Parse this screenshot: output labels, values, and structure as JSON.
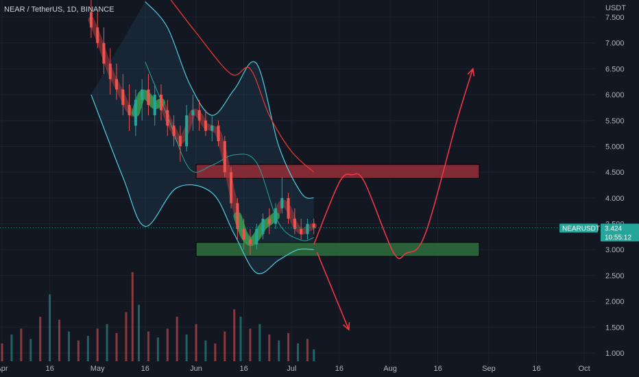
{
  "header": {
    "title": "NEAR / TetherUS, 1D, BINANCE"
  },
  "price_axis": {
    "currency": "USDT",
    "ticks": [
      "7.500",
      "7.000",
      "6.500",
      "6.000",
      "5.500",
      "5.000",
      "4.500",
      "4.000",
      "3.500",
      "3.000",
      "2.500",
      "2.000",
      "1.500",
      "1.000"
    ]
  },
  "time_axis": {
    "ticks": [
      "Apr",
      "16",
      "May",
      "16",
      "Jun",
      "16",
      "Jul",
      "16",
      "Aug",
      "16",
      "Sep",
      "16",
      "Oct"
    ]
  },
  "last_price": {
    "symbol": "NEARUSDT",
    "price": "3.424",
    "countdown": "10:55:12",
    "value": 3.424
  },
  "colors": {
    "background": "#131722",
    "up": "#26a69a",
    "down": "#ef5350",
    "band": "#4dd0e1",
    "ma_long": "#e53935",
    "projection": "#f23645",
    "resistance_fill": "#8e2b37",
    "support_fill": "#2d6a3c",
    "tag": "#26a69a"
  },
  "chart_data": {
    "type": "candlestick",
    "symbol": "NEAR / TetherUS",
    "interval": "1D",
    "exchange": "BINANCE",
    "y_unit": "USDT",
    "ylim": [
      0.9,
      7.8
    ],
    "x_range": [
      "2022-04-01",
      "2022-10-06"
    ],
    "candles": [
      {
        "date": "2022-04-29",
        "open": 7.6,
        "high": 8.0,
        "low": 7.1,
        "close": 7.3
      },
      {
        "date": "2022-05-01",
        "open": 7.3,
        "high": 7.6,
        "low": 6.9,
        "close": 7.0
      },
      {
        "date": "2022-05-03",
        "open": 7.0,
        "high": 7.3,
        "low": 6.4,
        "close": 6.6
      },
      {
        "date": "2022-05-05",
        "open": 6.6,
        "high": 6.9,
        "low": 6.0,
        "close": 6.3
      },
      {
        "date": "2022-05-07",
        "open": 6.3,
        "high": 6.6,
        "low": 5.9,
        "close": 6.1
      },
      {
        "date": "2022-05-09",
        "open": 6.1,
        "high": 6.4,
        "low": 5.6,
        "close": 5.8
      },
      {
        "date": "2022-05-11",
        "open": 5.8,
        "high": 6.2,
        "low": 5.3,
        "close": 5.6
      },
      {
        "date": "2022-05-13",
        "open": 5.4,
        "high": 6.1,
        "low": 5.2,
        "close": 5.9
      },
      {
        "date": "2022-05-15",
        "open": 5.9,
        "high": 6.3,
        "low": 5.5,
        "close": 6.1
      },
      {
        "date": "2022-05-17",
        "open": 6.1,
        "high": 6.4,
        "low": 5.6,
        "close": 5.8
      },
      {
        "date": "2022-05-19",
        "open": 5.6,
        "high": 6.2,
        "low": 5.4,
        "close": 6.0
      },
      {
        "date": "2022-05-21",
        "open": 6.0,
        "high": 6.2,
        "low": 5.5,
        "close": 5.7
      },
      {
        "date": "2022-05-23",
        "open": 5.7,
        "high": 5.9,
        "low": 5.2,
        "close": 5.4
      },
      {
        "date": "2022-05-25",
        "open": 5.4,
        "high": 5.6,
        "low": 5.0,
        "close": 5.2
      },
      {
        "date": "2022-05-27",
        "open": 5.2,
        "high": 5.4,
        "low": 4.7,
        "close": 5.0
      },
      {
        "date": "2022-05-29",
        "open": 5.0,
        "high": 5.8,
        "low": 4.9,
        "close": 5.6
      },
      {
        "date": "2022-05-31",
        "open": 5.6,
        "high": 6.0,
        "low": 5.3,
        "close": 5.7
      },
      {
        "date": "2022-06-02",
        "open": 5.7,
        "high": 5.9,
        "low": 5.3,
        "close": 5.5
      },
      {
        "date": "2022-06-04",
        "open": 5.5,
        "high": 5.7,
        "low": 5.2,
        "close": 5.3
      },
      {
        "date": "2022-06-06",
        "open": 5.3,
        "high": 5.6,
        "low": 5.1,
        "close": 5.4
      },
      {
        "date": "2022-06-08",
        "open": 5.4,
        "high": 5.5,
        "low": 5.0,
        "close": 5.1
      },
      {
        "date": "2022-06-10",
        "open": 5.1,
        "high": 5.2,
        "low": 4.4,
        "close": 4.5
      },
      {
        "date": "2022-06-12",
        "open": 4.5,
        "high": 4.6,
        "low": 3.8,
        "close": 3.9
      },
      {
        "date": "2022-06-14",
        "open": 3.9,
        "high": 4.0,
        "low": 3.2,
        "close": 3.4
      },
      {
        "date": "2022-06-16",
        "open": 3.4,
        "high": 3.6,
        "low": 3.0,
        "close": 3.2
      },
      {
        "date": "2022-06-18",
        "open": 3.2,
        "high": 3.4,
        "low": 2.9,
        "close": 3.1
      },
      {
        "date": "2022-06-20",
        "open": 3.1,
        "high": 3.5,
        "low": 3.0,
        "close": 3.4
      },
      {
        "date": "2022-06-22",
        "open": 3.3,
        "high": 3.7,
        "low": 3.2,
        "close": 3.6
      },
      {
        "date": "2022-06-24",
        "open": 3.6,
        "high": 3.8,
        "low": 3.3,
        "close": 3.5
      },
      {
        "date": "2022-06-26",
        "open": 3.5,
        "high": 3.9,
        "low": 3.4,
        "close": 3.8
      },
      {
        "date": "2022-06-28",
        "open": 3.8,
        "high": 4.4,
        "low": 3.7,
        "close": 4.0
      },
      {
        "date": "2022-06-30",
        "open": 4.0,
        "high": 4.1,
        "low": 3.5,
        "close": 3.6
      },
      {
        "date": "2022-07-02",
        "open": 3.6,
        "high": 3.8,
        "low": 3.3,
        "close": 3.4
      },
      {
        "date": "2022-07-04",
        "open": 3.4,
        "high": 3.6,
        "low": 3.2,
        "close": 3.3
      },
      {
        "date": "2022-07-06",
        "open": 3.3,
        "high": 3.6,
        "low": 3.2,
        "close": 3.5
      },
      {
        "date": "2022-07-08",
        "open": 3.5,
        "high": 3.6,
        "low": 3.3,
        "close": 3.424
      }
    ],
    "volume": [
      {
        "date": "2022-04-01",
        "value": 12,
        "dir": "down"
      },
      {
        "date": "2022-04-04",
        "value": 18,
        "dir": "up"
      },
      {
        "date": "2022-04-07",
        "value": 22,
        "dir": "down"
      },
      {
        "date": "2022-04-10",
        "value": 15,
        "dir": "up"
      },
      {
        "date": "2022-04-13",
        "value": 30,
        "dir": "down"
      },
      {
        "date": "2022-04-16",
        "value": 45,
        "dir": "up"
      },
      {
        "date": "2022-04-19",
        "value": 28,
        "dir": "down"
      },
      {
        "date": "2022-04-22",
        "value": 20,
        "dir": "up"
      },
      {
        "date": "2022-04-25",
        "value": 14,
        "dir": "down"
      },
      {
        "date": "2022-04-28",
        "value": 17,
        "dir": "up"
      },
      {
        "date": "2022-05-01",
        "value": 22,
        "dir": "down"
      },
      {
        "date": "2022-05-04",
        "value": 25,
        "dir": "up"
      },
      {
        "date": "2022-05-07",
        "value": 19,
        "dir": "down"
      },
      {
        "date": "2022-05-10",
        "value": 33,
        "dir": "down"
      },
      {
        "date": "2022-05-12",
        "value": 60,
        "dir": "down"
      },
      {
        "date": "2022-05-14",
        "value": 38,
        "dir": "up"
      },
      {
        "date": "2022-05-17",
        "value": 20,
        "dir": "down"
      },
      {
        "date": "2022-05-20",
        "value": 16,
        "dir": "up"
      },
      {
        "date": "2022-05-23",
        "value": 22,
        "dir": "down"
      },
      {
        "date": "2022-05-26",
        "value": 30,
        "dir": "down"
      },
      {
        "date": "2022-05-29",
        "value": 18,
        "dir": "up"
      },
      {
        "date": "2022-06-01",
        "value": 25,
        "dir": "down"
      },
      {
        "date": "2022-06-04",
        "value": 14,
        "dir": "up"
      },
      {
        "date": "2022-06-07",
        "value": 12,
        "dir": "down"
      },
      {
        "date": "2022-06-10",
        "value": 20,
        "dir": "down"
      },
      {
        "date": "2022-06-13",
        "value": 35,
        "dir": "down"
      },
      {
        "date": "2022-06-15",
        "value": 30,
        "dir": "up"
      },
      {
        "date": "2022-06-18",
        "value": 22,
        "dir": "down"
      },
      {
        "date": "2022-06-21",
        "value": 25,
        "dir": "up"
      },
      {
        "date": "2022-06-24",
        "value": 18,
        "dir": "down"
      },
      {
        "date": "2022-06-27",
        "value": 14,
        "dir": "up"
      },
      {
        "date": "2022-06-30",
        "value": 19,
        "dir": "down"
      },
      {
        "date": "2022-07-03",
        "value": 12,
        "dir": "up"
      },
      {
        "date": "2022-07-06",
        "value": 15,
        "dir": "down"
      },
      {
        "date": "2022-07-08",
        "value": 8,
        "dir": "up"
      }
    ],
    "zones": [
      {
        "kind": "resistance",
        "from": "2022-06-01",
        "to": "2022-08-29",
        "low": 4.38,
        "high": 4.65
      },
      {
        "kind": "support",
        "from": "2022-06-01",
        "to": "2022-08-29",
        "low": 2.87,
        "high": 3.14
      }
    ],
    "upper_band": [
      {
        "date": "2022-05-16",
        "value": 7.8
      },
      {
        "date": "2022-05-23",
        "value": 7.3
      },
      {
        "date": "2022-05-30",
        "value": 6.2
      },
      {
        "date": "2022-06-06",
        "value": 5.6
      },
      {
        "date": "2022-06-13",
        "value": 6.1
      },
      {
        "date": "2022-06-20",
        "value": 6.6
      },
      {
        "date": "2022-06-27",
        "value": 5.0
      },
      {
        "date": "2022-07-04",
        "value": 4.1
      },
      {
        "date": "2022-07-08",
        "value": 4.0
      }
    ],
    "lower_band": [
      {
        "date": "2022-04-29",
        "value": 6.0
      },
      {
        "date": "2022-05-09",
        "value": 4.4
      },
      {
        "date": "2022-05-16",
        "value": 3.45
      },
      {
        "date": "2022-05-26",
        "value": 4.2
      },
      {
        "date": "2022-06-06",
        "value": 4.1
      },
      {
        "date": "2022-06-13",
        "value": 3.3
      },
      {
        "date": "2022-06-20",
        "value": 2.55
      },
      {
        "date": "2022-06-27",
        "value": 2.8
      },
      {
        "date": "2022-07-03",
        "value": 3.0
      },
      {
        "date": "2022-07-08",
        "value": 3.0
      }
    ],
    "ma_long": [
      {
        "date": "2022-05-22",
        "value": 8.0
      },
      {
        "date": "2022-06-01",
        "value": 7.2
      },
      {
        "date": "2022-06-12",
        "value": 6.4
      },
      {
        "date": "2022-06-18",
        "value": 6.5
      },
      {
        "date": "2022-06-24",
        "value": 5.6
      },
      {
        "date": "2022-07-01",
        "value": 4.9
      },
      {
        "date": "2022-07-08",
        "value": 4.5
      }
    ],
    "projection_up": [
      {
        "date": "2022-07-08",
        "value": 3.1
      },
      {
        "date": "2022-07-16",
        "value": 4.3
      },
      {
        "date": "2022-07-20",
        "value": 4.45
      },
      {
        "date": "2022-07-24",
        "value": 4.3
      },
      {
        "date": "2022-08-02",
        "value": 2.95
      },
      {
        "date": "2022-08-06",
        "value": 2.93
      },
      {
        "date": "2022-08-12",
        "value": 3.3
      },
      {
        "date": "2022-08-22",
        "value": 5.5
      },
      {
        "date": "2022-08-27",
        "value": 6.5
      }
    ],
    "projection_down": [
      {
        "date": "2022-07-09",
        "value": 2.95
      },
      {
        "date": "2022-07-19",
        "value": 1.45
      }
    ]
  }
}
